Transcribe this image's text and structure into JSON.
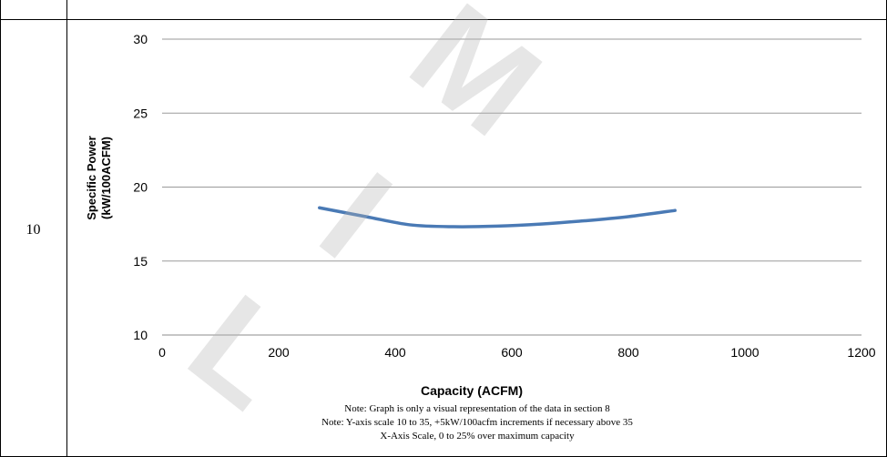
{
  "row": {
    "number": "10"
  },
  "chart_data": {
    "type": "line",
    "title": "",
    "xlabel": "Capacity (ACFM)",
    "ylabel_lines": [
      "Specific Power",
      "(kW/100ACFM)"
    ],
    "xlim": [
      0,
      1200
    ],
    "ylim": [
      10,
      30
    ],
    "x_ticks": [
      0,
      200,
      400,
      600,
      800,
      1000,
      1200
    ],
    "y_ticks": [
      10,
      15,
      20,
      25,
      30
    ],
    "grid": "horizontal",
    "legend": "none",
    "series": [
      {
        "color": "#4a7ab5",
        "points": [
          {
            "x": 270,
            "y": 18.6
          },
          {
            "x": 350,
            "y": 18.0
          },
          {
            "x": 425,
            "y": 17.45
          },
          {
            "x": 500,
            "y": 17.32
          },
          {
            "x": 575,
            "y": 17.36
          },
          {
            "x": 650,
            "y": 17.5
          },
          {
            "x": 725,
            "y": 17.72
          },
          {
            "x": 800,
            "y": 18.0
          },
          {
            "x": 880,
            "y": 18.42
          }
        ]
      }
    ]
  },
  "notes": [
    "Note: Graph is only a visual representation of the data in section 8",
    "Note: Y-axis scale 10 to 35, +5kW/100acfm increments if necessary above 35",
    "X-Axis Scale, 0 to 25% over maximum capacity"
  ],
  "watermark": {
    "letters": [
      "L",
      "I",
      "M"
    ],
    "color": "#b4b4b4"
  }
}
